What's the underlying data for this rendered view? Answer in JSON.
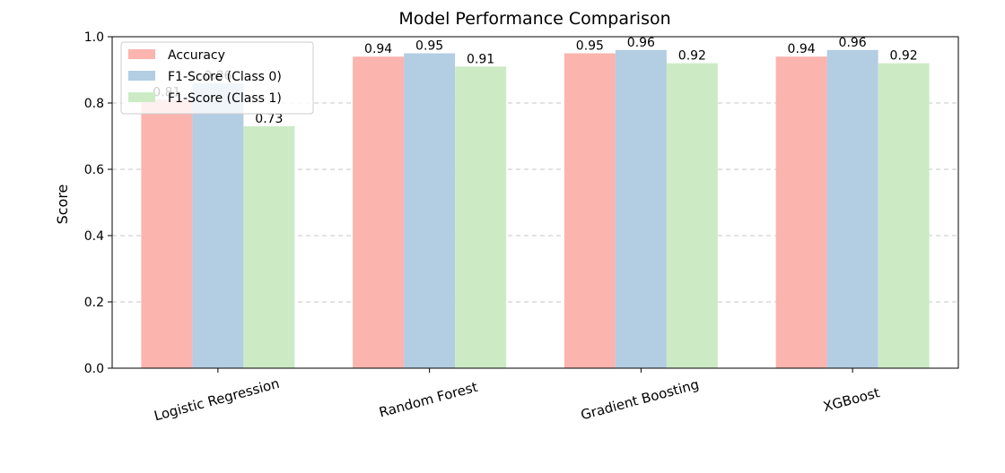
{
  "chart_data": {
    "type": "bar",
    "title": "Model Performance Comparison",
    "xlabel": "",
    "ylabel": "Score",
    "ylim": [
      0,
      1.0
    ],
    "yticks": [
      "0.0",
      "0.2",
      "0.4",
      "0.6",
      "0.8",
      "1.0"
    ],
    "grid": "y-dashed",
    "legend_position": "top-left",
    "categories": [
      "Logistic Regression",
      "Random Forest",
      "Gradient Boosting",
      "XGBoost"
    ],
    "series": [
      {
        "name": "Accuracy",
        "color": "#fbb4ae",
        "values": [
          0.81,
          0.94,
          0.95,
          0.94
        ],
        "labels": [
          "0.81",
          "0.94",
          "0.95",
          "0.94"
        ]
      },
      {
        "name": "F1-Score (Class 0)",
        "color": "#b3cde3",
        "values": [
          0.86,
          0.95,
          0.96,
          0.96
        ],
        "labels": [
          "0.86",
          "0.95",
          "0.96",
          "0.96"
        ]
      },
      {
        "name": "F1-Score (Class 1)",
        "color": "#ccebc5",
        "values": [
          0.73,
          0.91,
          0.92,
          0.92
        ],
        "labels": [
          "0.73",
          "0.91",
          "0.92",
          "0.92"
        ]
      }
    ]
  }
}
